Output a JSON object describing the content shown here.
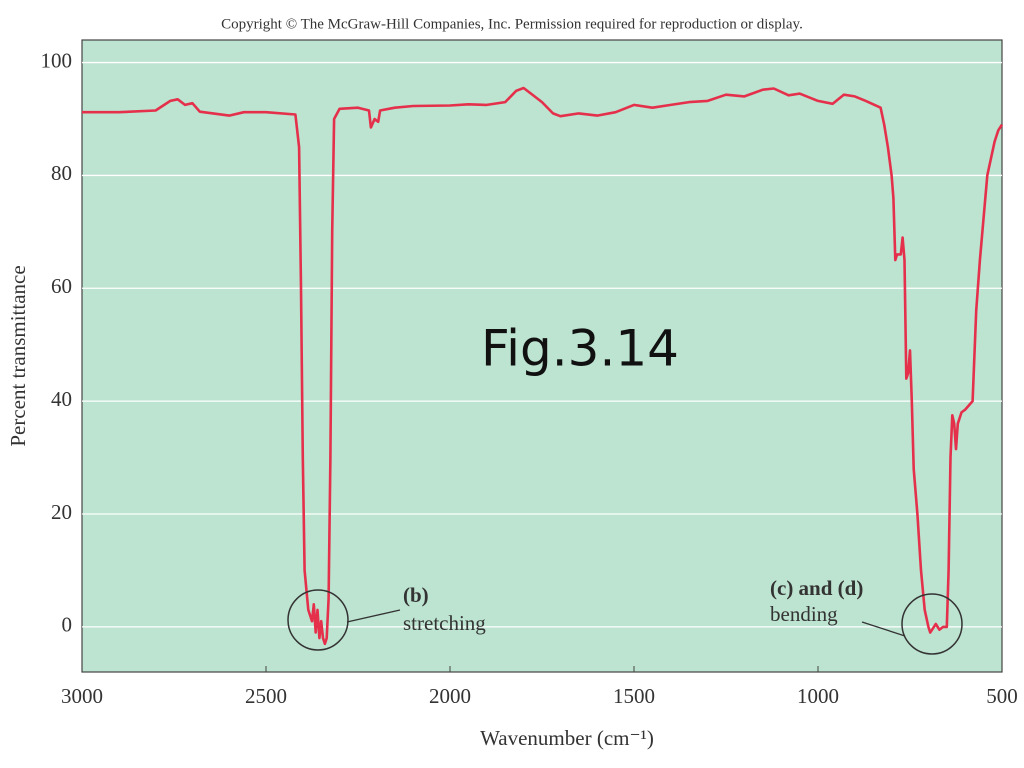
{
  "chart_data": {
    "type": "line",
    "copyright": "Copyright © The McGraw-Hill Companies, Inc. Permission required for reproduction or display.",
    "annotation": "Fig.3.14",
    "callouts": [
      {
        "label": "(b)",
        "text": "stretching"
      },
      {
        "label": "(c) and (d)",
        "text": "bending"
      }
    ],
    "x_label": "Wavenumber (cm⁻¹)",
    "y_label": "Percent transmittance",
    "xlim": [
      3000,
      500
    ],
    "ylim": [
      -8,
      104
    ],
    "xticks": [
      3000,
      2500,
      2000,
      1500,
      1000,
      500
    ],
    "yticks": [
      0,
      20,
      40,
      60,
      80,
      100
    ],
    "grid": true,
    "color": "#e5304b",
    "x": [
      3000,
      2900,
      2800,
      2760,
      2740,
      2720,
      2700,
      2680,
      2600,
      2560,
      2500,
      2420,
      2410,
      2405,
      2400,
      2395,
      2385,
      2375,
      2370,
      2365,
      2360,
      2355,
      2350,
      2345,
      2340,
      2335,
      2330,
      2325,
      2320,
      2315,
      2300,
      2250,
      2220,
      2215,
      2205,
      2195,
      2190,
      2150,
      2100,
      2000,
      1950,
      1900,
      1850,
      1820,
      1800,
      1780,
      1750,
      1720,
      1700,
      1650,
      1600,
      1550,
      1500,
      1450,
      1400,
      1350,
      1300,
      1250,
      1200,
      1150,
      1120,
      1080,
      1050,
      1000,
      960,
      930,
      900,
      870,
      850,
      830,
      820,
      810,
      800,
      795,
      790,
      785,
      775,
      770,
      765,
      760,
      755,
      750,
      745,
      740,
      730,
      720,
      710,
      700,
      695,
      690,
      680,
      670,
      660,
      650,
      645,
      640,
      635,
      630,
      625,
      620,
      610,
      600,
      580,
      570,
      560,
      540,
      520,
      510,
      500
    ],
    "values": [
      91.2,
      91.2,
      91.5,
      93.2,
      93.5,
      92.5,
      92.8,
      91.3,
      90.6,
      91.2,
      91.2,
      90.8,
      85,
      60,
      30,
      10,
      3,
      1,
      4,
      -1,
      3,
      -2,
      1,
      -2,
      -3,
      -2,
      5,
      30,
      70,
      90,
      91.8,
      92,
      91.5,
      88.5,
      90,
      89.5,
      91.5,
      92,
      92.3,
      92.4,
      92.6,
      92.5,
      93,
      95,
      95.5,
      94.5,
      93,
      91,
      90.5,
      91,
      90.6,
      91.2,
      92.5,
      92,
      92.5,
      93,
      93.2,
      94.3,
      94,
      95.2,
      95.4,
      94.2,
      94.5,
      93.2,
      92.7,
      94.3,
      94,
      93.2,
      92.6,
      92,
      89,
      85,
      80,
      76,
      65,
      66,
      66,
      69,
      65,
      44,
      45,
      49,
      40,
      28,
      20,
      10,
      3,
      0,
      -1,
      -0.5,
      0.5,
      -0.5,
      0,
      0,
      10,
      30,
      37.5,
      36,
      31.5,
      36,
      38,
      38.5,
      40,
      56,
      65,
      80,
      86,
      88,
      89
    ]
  }
}
